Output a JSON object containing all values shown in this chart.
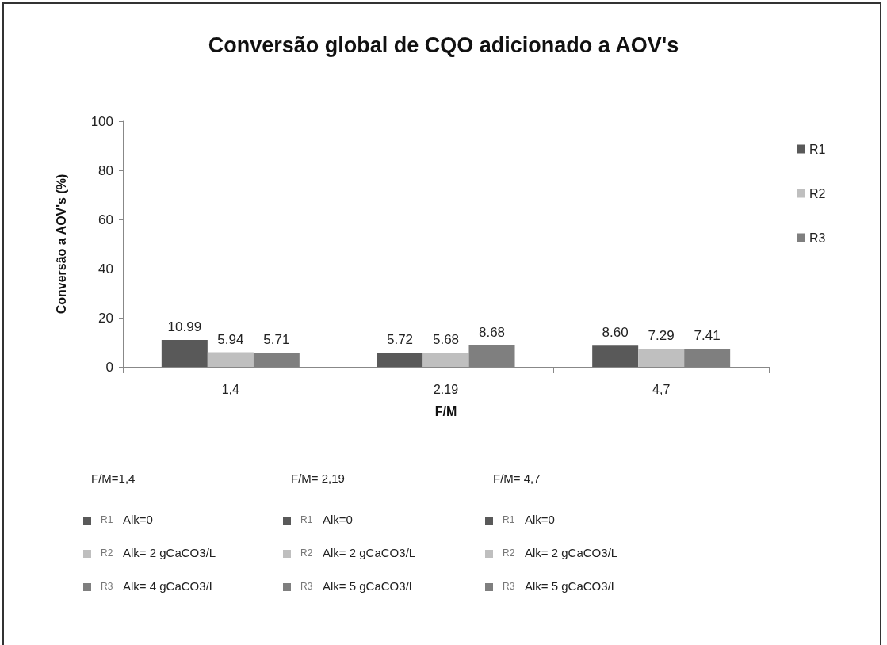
{
  "chart_data": {
    "type": "bar",
    "title": "Conversão global de CQO adicionado a AOV's",
    "xlabel": "F/M",
    "ylabel": "Conversão a AOV's (%)",
    "categories": [
      "1,4",
      "2.19",
      "4,7"
    ],
    "series": [
      {
        "name": "R1",
        "color": "#595959",
        "values": [
          10.99,
          5.72,
          8.6
        ],
        "value_labels": [
          "10.99",
          "5.72",
          "8.60"
        ]
      },
      {
        "name": "R2",
        "color": "#bfbfbf",
        "values": [
          5.94,
          5.68,
          7.29
        ],
        "value_labels": [
          "5.94",
          "5.68",
          "7.29"
        ]
      },
      {
        "name": "R3",
        "color": "#7f7f7f",
        "values": [
          5.71,
          8.68,
          7.41
        ],
        "value_labels": [
          "5.71",
          "8.68",
          "7.41"
        ]
      }
    ],
    "ylim": [
      0,
      100
    ],
    "yticks": [
      0,
      20,
      40,
      60,
      80,
      100
    ],
    "grid": false,
    "legend": "right",
    "annotations": [
      "F/M=1,4",
      "F/M= 2,19",
      "F/M= 4,7",
      "R1",
      "Alk=0",
      "R1",
      "Alk=0",
      "R1",
      "Alk=0",
      "R2",
      "Alk= 2 gCaCO3/L",
      "R2",
      "Alk= 2 gCaCO3/L",
      "R2",
      "Alk= 2 gCaCO3/L",
      "R3",
      "Alk= 4 gCaCO3/L",
      "R3",
      "Alk= 5 gCaCO3/L",
      "R3",
      "Alk= 5 gCaCO3/L"
    ]
  }
}
